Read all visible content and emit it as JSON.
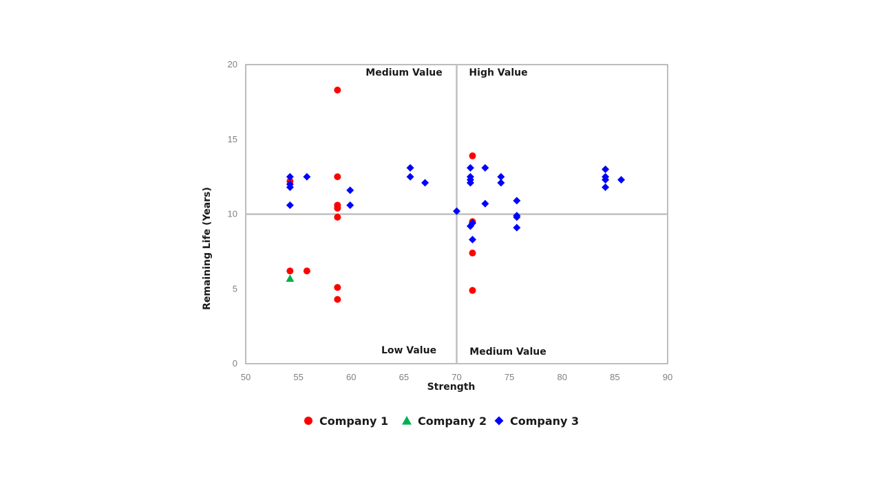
{
  "chart_data": {
    "type": "scatter",
    "xlabel": "Strength",
    "ylabel": "Remaining Life (Years)",
    "xlim": [
      50,
      90
    ],
    "ylim": [
      0,
      20
    ],
    "xticks": [
      50,
      55,
      60,
      65,
      70,
      75,
      80,
      85,
      90
    ],
    "yticks": [
      0,
      5,
      10,
      15,
      20
    ],
    "reference_lines": {
      "x": 70,
      "y": 10
    },
    "quadrant_labels": {
      "top_left": "Medium Value",
      "top_right": "High Value",
      "bottom_left": "Low Value",
      "bottom_right": "Medium Value"
    },
    "legend_position": "bottom",
    "series": [
      {
        "name": "Company 1",
        "marker": "circle",
        "color": "#ff0000",
        "points": [
          [
            54.2,
            12.2
          ],
          [
            54.2,
            6.2
          ],
          [
            55.8,
            6.2
          ],
          [
            58.7,
            18.3
          ],
          [
            58.7,
            12.5
          ],
          [
            58.7,
            10.6
          ],
          [
            58.7,
            10.4
          ],
          [
            58.7,
            9.8
          ],
          [
            58.7,
            5.1
          ],
          [
            58.7,
            4.3
          ],
          [
            71.5,
            13.9
          ],
          [
            71.5,
            9.5
          ],
          [
            71.5,
            7.4
          ],
          [
            71.5,
            4.9
          ]
        ]
      },
      {
        "name": "Company 2",
        "marker": "triangle",
        "color": "#00b050",
        "points": [
          [
            54.2,
            5.7
          ]
        ]
      },
      {
        "name": "Company 3",
        "marker": "diamond",
        "color": "#0000ff",
        "points": [
          [
            54.2,
            12.5
          ],
          [
            54.2,
            12.0
          ],
          [
            54.2,
            11.8
          ],
          [
            54.2,
            10.6
          ],
          [
            55.8,
            12.5
          ],
          [
            59.9,
            11.6
          ],
          [
            59.9,
            10.6
          ],
          [
            65.6,
            13.1
          ],
          [
            65.6,
            12.5
          ],
          [
            67.0,
            12.1
          ],
          [
            70.0,
            10.2
          ],
          [
            71.3,
            13.1
          ],
          [
            71.3,
            12.5
          ],
          [
            71.3,
            12.3
          ],
          [
            71.3,
            12.1
          ],
          [
            71.3,
            9.2
          ],
          [
            71.5,
            9.4
          ],
          [
            71.5,
            8.3
          ],
          [
            72.7,
            13.1
          ],
          [
            72.7,
            10.7
          ],
          [
            74.2,
            12.5
          ],
          [
            74.2,
            12.1
          ],
          [
            75.7,
            10.9
          ],
          [
            75.7,
            9.9
          ],
          [
            75.7,
            9.8
          ],
          [
            75.7,
            9.1
          ],
          [
            84.1,
            13.0
          ],
          [
            84.1,
            12.5
          ],
          [
            84.1,
            12.3
          ],
          [
            84.1,
            11.8
          ],
          [
            85.6,
            12.3
          ]
        ]
      }
    ]
  }
}
